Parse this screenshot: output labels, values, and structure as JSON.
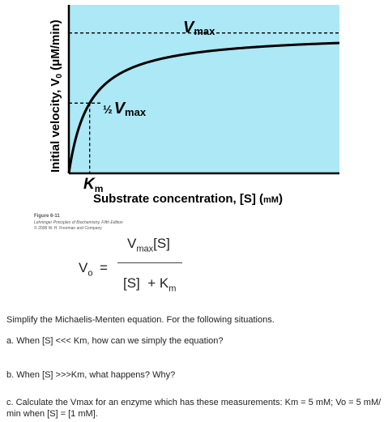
{
  "chart_data": {
    "type": "line",
    "x_label_prefix": "Substrate concentration, [S] (",
    "x_label_unit": "mM",
    "x_label_suffix": ")",
    "y_label_prefix": "Initial velocity, V",
    "y_label_sub": "0",
    "y_label_suffix": " (μM/min)",
    "vmax_label": "V",
    "vmax_sub": "max",
    "half_vmax_half": "½",
    "half_vmax_v": "V",
    "half_vmax_sub": "max",
    "km_label": "K",
    "km_sub": "m",
    "vmax": 1.0,
    "km": 1.0,
    "xlim": [
      0,
      13
    ],
    "ylim": [
      0,
      1.2
    ],
    "series": [
      {
        "type": "michaelis-menten",
        "x_start": 0,
        "x_end": 13,
        "color": "#000000"
      }
    ],
    "plot_background": "#ace8f5"
  },
  "figure": {
    "number": "Figure 6-11",
    "source": "Lehninger Principles of Biochemistry, Fifth Edition",
    "copyright": "© 2008 W. H. Freeman and Company"
  },
  "equation": {
    "lhs_v": "V",
    "lhs_sub": "o",
    "equals": "=",
    "num_v": "V",
    "num_sub": "max",
    "num_s": "[S]",
    "den_s": "[S]",
    "den_plus": "+",
    "den_k": "K",
    "den_sub": "m"
  },
  "questions": {
    "intro": "Simplify the Michaelis-Menten equation. For the following situations.",
    "a": "a.   When [S] <<< Km, how can we simply the equation?",
    "b": "b. When [S] >>>Km, what happens? Why?",
    "c_line1": "c. Calculate the Vmax for an enzyme which has these measurements: Km = 5 mM; Vo = 5 mM/",
    "c_line2": "min when [S] = [1 mM]."
  },
  "colors": {
    "plot_bg": "#ace8f5",
    "axis": "#000000",
    "text": "#1a1a1a"
  }
}
